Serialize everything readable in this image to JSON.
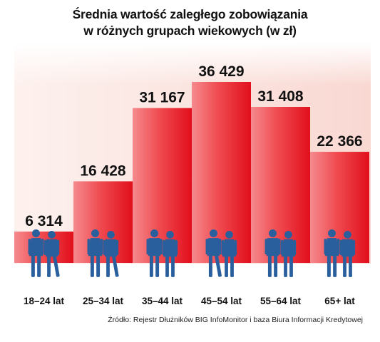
{
  "title_line1": "Średnia wartość zaległego zobowiązania",
  "title_line2": "w różnych grupach wiekowych (w zł)",
  "source": "Źródło: Rejestr Dłużników BIG InfoMonitor i baza Biura Informacji Kredytowej",
  "colors": {
    "bar_light": "#f58a8e",
    "bar_mid": "#ef4b50",
    "bar_dark": "#e3101e",
    "background_fade": "#fbe0da",
    "silhouette": "#2a5f9e"
  },
  "chart_data": {
    "type": "bar",
    "title": "Średnia wartość zaległego zobowiązania w różnych grupach wiekowych (w zł)",
    "categories": [
      "18–24 lat",
      "25–34 lat",
      "35–44 lat",
      "45–54 lat",
      "55–64 lat",
      "65+ lat"
    ],
    "values": [
      6314,
      16428,
      31167,
      36429,
      31408,
      22366
    ],
    "value_labels": [
      "6 314",
      "16 428",
      "31 167",
      "36 429",
      "31 408",
      "22 366"
    ],
    "ylim": [
      0,
      40000
    ],
    "grid": false,
    "legend": "none",
    "icons": [
      "people-silhouettes-icon"
    ]
  }
}
